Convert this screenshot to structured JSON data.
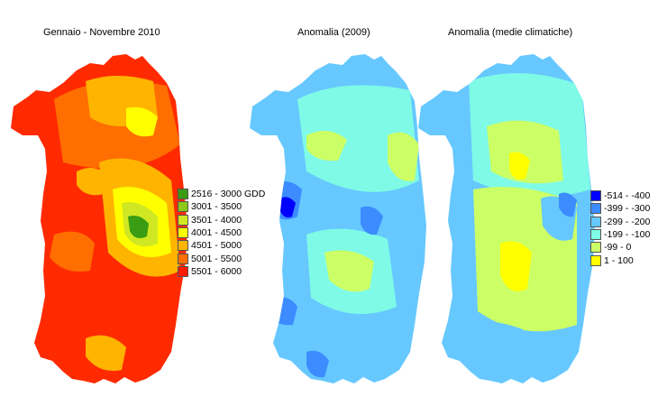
{
  "maps": [
    {
      "title": "Gennaio - Novembre 2010",
      "legend": [
        {
          "label": "2516 - 3000 GDD",
          "color": "#3a9c12"
        },
        {
          "label": "3001 - 3500",
          "color": "#8bc81a"
        },
        {
          "label": "3501 - 4000",
          "color": "#cfe823"
        },
        {
          "label": "4001 - 4500",
          "color": "#ffff00"
        },
        {
          "label": "4501 - 5000",
          "color": "#ffb400"
        },
        {
          "label": "5001 - 5500",
          "color": "#ff6e00"
        },
        {
          "label": "5501 - 6000",
          "color": "#ff1a00"
        }
      ]
    },
    {
      "title": "Anomalia (2009)"
    },
    {
      "title": "Anomalia (medie climatiche)",
      "legend": [
        {
          "label": "-514 - -400",
          "color": "#0000ff"
        },
        {
          "label": "-399 - -300",
          "color": "#3d8cff"
        },
        {
          "label": "-299 - -200",
          "color": "#66c8ff"
        },
        {
          "label": "-199 - -100",
          "color": "#7ffae6"
        },
        {
          "label": "-99 - 0",
          "color": "#ccff66"
        },
        {
          "label": "1 - 100",
          "color": "#ffff00"
        }
      ]
    }
  ]
}
